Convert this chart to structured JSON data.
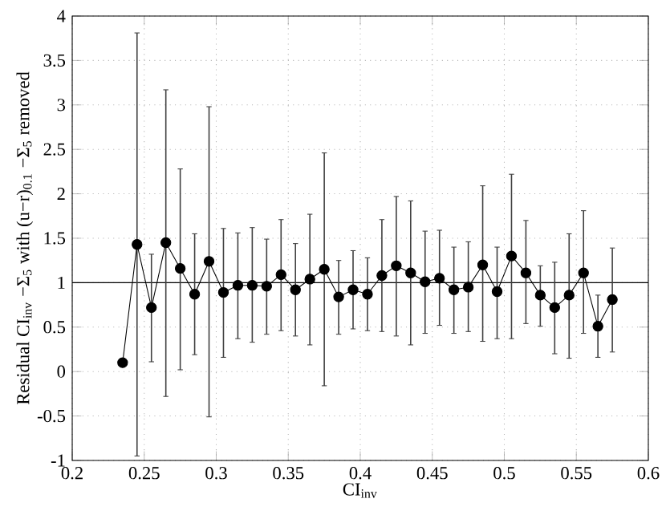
{
  "chart_data": {
    "type": "line",
    "xlabel": "CI$_{inv}$",
    "ylabel": "Residual CI$_{inv}$ −Σ$_{5}$ with (u−r)$_{0.1}$ −Σ$_{5}$ removed",
    "x": [
      0.235,
      0.245,
      0.255,
      0.265,
      0.275,
      0.285,
      0.295,
      0.305,
      0.315,
      0.325,
      0.335,
      0.345,
      0.355,
      0.365,
      0.375,
      0.385,
      0.395,
      0.405,
      0.415,
      0.425,
      0.435,
      0.445,
      0.455,
      0.465,
      0.475,
      0.485,
      0.495,
      0.505,
      0.515,
      0.525,
      0.535,
      0.545,
      0.555,
      0.565,
      0.575
    ],
    "series": [
      {
        "color": "#000000",
        "values": [
          0.1,
          1.43,
          0.72,
          1.45,
          1.16,
          0.87,
          1.24,
          0.89,
          0.97,
          0.97,
          0.96,
          1.09,
          0.92,
          1.04,
          1.15,
          0.84,
          0.92,
          0.87,
          1.08,
          1.19,
          1.11,
          1.01,
          1.05,
          0.92,
          0.95,
          1.2,
          0.9,
          1.3,
          1.11,
          0.86,
          0.72,
          0.86,
          1.11,
          0.51,
          0.81
        ],
        "errors": [
          null,
          [
            -0.95,
            3.81
          ],
          [
            0.11,
            1.32
          ],
          [
            -0.28,
            3.17
          ],
          [
            0.02,
            2.28
          ],
          [
            0.19,
            1.55
          ],
          [
            -0.51,
            2.98
          ],
          [
            0.16,
            1.61
          ],
          [
            0.37,
            1.56
          ],
          [
            0.33,
            1.62
          ],
          [
            0.42,
            1.49
          ],
          [
            0.46,
            1.71
          ],
          [
            0.4,
            1.44
          ],
          [
            0.3,
            1.77
          ],
          [
            -0.16,
            2.46
          ],
          [
            0.42,
            1.25
          ],
          [
            0.48,
            1.36
          ],
          [
            0.46,
            1.28
          ],
          [
            0.45,
            1.71
          ],
          [
            0.4,
            1.97
          ],
          [
            0.3,
            1.92
          ],
          [
            0.43,
            1.58
          ],
          [
            0.52,
            1.59
          ],
          [
            0.43,
            1.4
          ],
          [
            0.45,
            1.46
          ],
          [
            0.34,
            2.09
          ],
          [
            0.37,
            1.4
          ],
          [
            0.37,
            2.22
          ],
          [
            0.54,
            1.7
          ],
          [
            0.51,
            1.19
          ],
          [
            0.2,
            1.23
          ],
          [
            0.15,
            1.55
          ],
          [
            0.43,
            1.81
          ],
          [
            0.16,
            0.86
          ],
          [
            0.22,
            1.39
          ]
        ]
      }
    ],
    "xlim": [
      0.2,
      0.6
    ],
    "ylim": [
      -1,
      4
    ],
    "xticks": [
      0.2,
      0.25,
      0.3,
      0.35,
      0.4,
      0.45,
      0.5,
      0.55,
      0.6
    ],
    "yticks": [
      -1,
      -0.5,
      0,
      0.5,
      1,
      1.5,
      2,
      2.5,
      3,
      3.5,
      4
    ],
    "ref_lines": [
      {
        "axis": "y",
        "value": 1,
        "color": "#000000"
      }
    ],
    "grid": true,
    "marker": "circle",
    "line_style": "solid"
  }
}
